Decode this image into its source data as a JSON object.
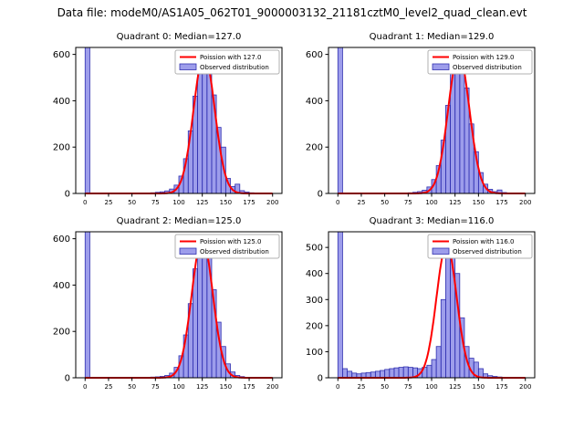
{
  "header": {
    "title": "Data file: modeM0/AS1A05_062T01_9000003132_21181cztM0_level2_quad_clean.evt"
  },
  "colors": {
    "bar_fill": "rgba(60,60,215,0.5)",
    "bar_edge": "#3030b0",
    "curve": "#ff0000",
    "spine": "#000000",
    "legend_border": "#b0b0b0",
    "legend_bg": "#ffffff"
  },
  "chart_data": [
    {
      "type": "bar",
      "title": "Quadrant 0: Median=127.0",
      "legend": [
        "Poission with 127.0",
        "Observed distribution"
      ],
      "xlim": [
        -10,
        210
      ],
      "ylim": [
        0,
        630
      ],
      "xticks": [
        0,
        25,
        50,
        75,
        100,
        125,
        150,
        175,
        200
      ],
      "yticks": [
        0,
        200,
        400,
        600
      ],
      "bin_start": 0,
      "bin_width": 5,
      "counts": [
        650,
        2,
        1,
        1,
        0,
        1,
        0,
        1,
        1,
        0,
        1,
        1,
        2,
        2,
        3,
        5,
        7,
        11,
        19,
        36,
        75,
        150,
        270,
        420,
        540,
        600,
        555,
        425,
        285,
        200,
        65,
        30,
        40,
        12,
        6,
        3,
        2,
        1,
        1,
        0
      ],
      "poisson": {
        "lambda": 127.0,
        "amplitude": 600
      }
    },
    {
      "type": "bar",
      "title": "Quadrant 1: Median=129.0",
      "legend": [
        "Poission with 129.0",
        "Observed distribution"
      ],
      "xlim": [
        -10,
        210
      ],
      "ylim": [
        0,
        630
      ],
      "xticks": [
        0,
        25,
        50,
        75,
        100,
        125,
        150,
        175,
        200
      ],
      "yticks": [
        0,
        200,
        400,
        600
      ],
      "bin_start": 0,
      "bin_width": 5,
      "counts": [
        650,
        2,
        1,
        0,
        1,
        0,
        1,
        0,
        1,
        1,
        0,
        1,
        1,
        2,
        2,
        3,
        5,
        8,
        14,
        28,
        60,
        120,
        230,
        380,
        520,
        600,
        575,
        455,
        300,
        180,
        90,
        40,
        18,
        8,
        15,
        4,
        2,
        1,
        0,
        0
      ],
      "poisson": {
        "lambda": 129.0,
        "amplitude": 600
      }
    },
    {
      "type": "bar",
      "title": "Quadrant 2: Median=125.0",
      "legend": [
        "Poission with 125.0",
        "Observed distribution"
      ],
      "xlim": [
        -10,
        210
      ],
      "ylim": [
        0,
        630
      ],
      "xticks": [
        0,
        25,
        50,
        75,
        100,
        125,
        150,
        175,
        200
      ],
      "yticks": [
        0,
        200,
        400,
        600
      ],
      "bin_start": 0,
      "bin_width": 5,
      "counts": [
        650,
        2,
        1,
        1,
        0,
        1,
        1,
        0,
        1,
        0,
        1,
        1,
        2,
        2,
        3,
        4,
        6,
        10,
        20,
        45,
        95,
        185,
        320,
        470,
        580,
        600,
        520,
        380,
        240,
        135,
        60,
        25,
        10,
        5,
        2,
        1,
        1,
        0,
        0,
        0
      ],
      "poisson": {
        "lambda": 125.0,
        "amplitude": 600
      }
    },
    {
      "type": "bar",
      "title": "Quadrant 3: Median=116.0",
      "legend": [
        "Poission with 116.0",
        "Observed distribution"
      ],
      "xlim": [
        -10,
        210
      ],
      "ylim": [
        0,
        560
      ],
      "xticks": [
        0,
        25,
        50,
        75,
        100,
        125,
        150,
        175,
        200
      ],
      "yticks": [
        0,
        100,
        200,
        300,
        400,
        500
      ],
      "bin_start": 0,
      "bin_width": 5,
      "counts": [
        600,
        35,
        25,
        18,
        15,
        18,
        20,
        22,
        25,
        28,
        32,
        35,
        38,
        40,
        42,
        40,
        38,
        35,
        40,
        48,
        70,
        120,
        300,
        520,
        490,
        400,
        230,
        120,
        75,
        60,
        35,
        15,
        8,
        5,
        3,
        2,
        1,
        1,
        0,
        0
      ],
      "poisson": {
        "lambda": 116.0,
        "amplitude": 510
      }
    }
  ]
}
